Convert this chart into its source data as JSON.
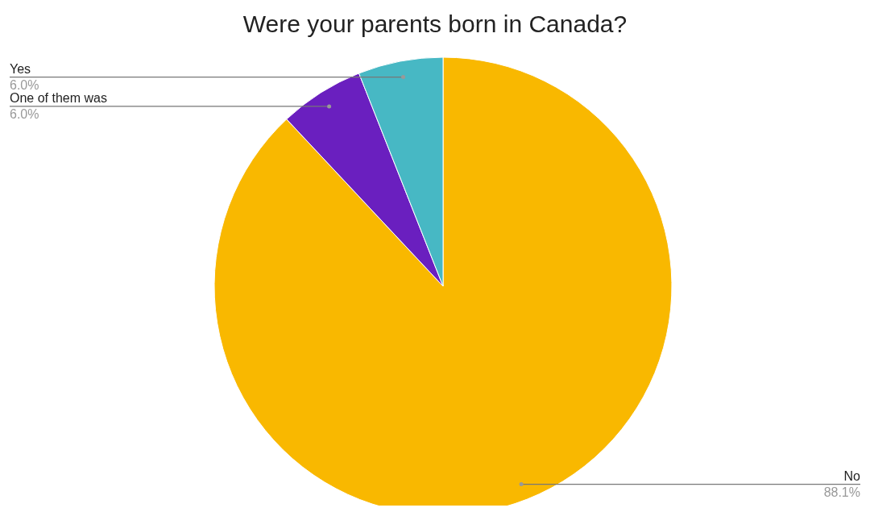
{
  "chart_data": {
    "type": "pie",
    "title": "Were your parents born in Canada?",
    "categories": [
      "No",
      "One of them was",
      "Yes"
    ],
    "values": [
      88.1,
      6.0,
      6.0
    ],
    "value_labels": [
      "88.1%",
      "6.0%",
      "6.0%"
    ],
    "colors": [
      "#f9b800",
      "#6a1fbf",
      "#47b8c4"
    ]
  }
}
